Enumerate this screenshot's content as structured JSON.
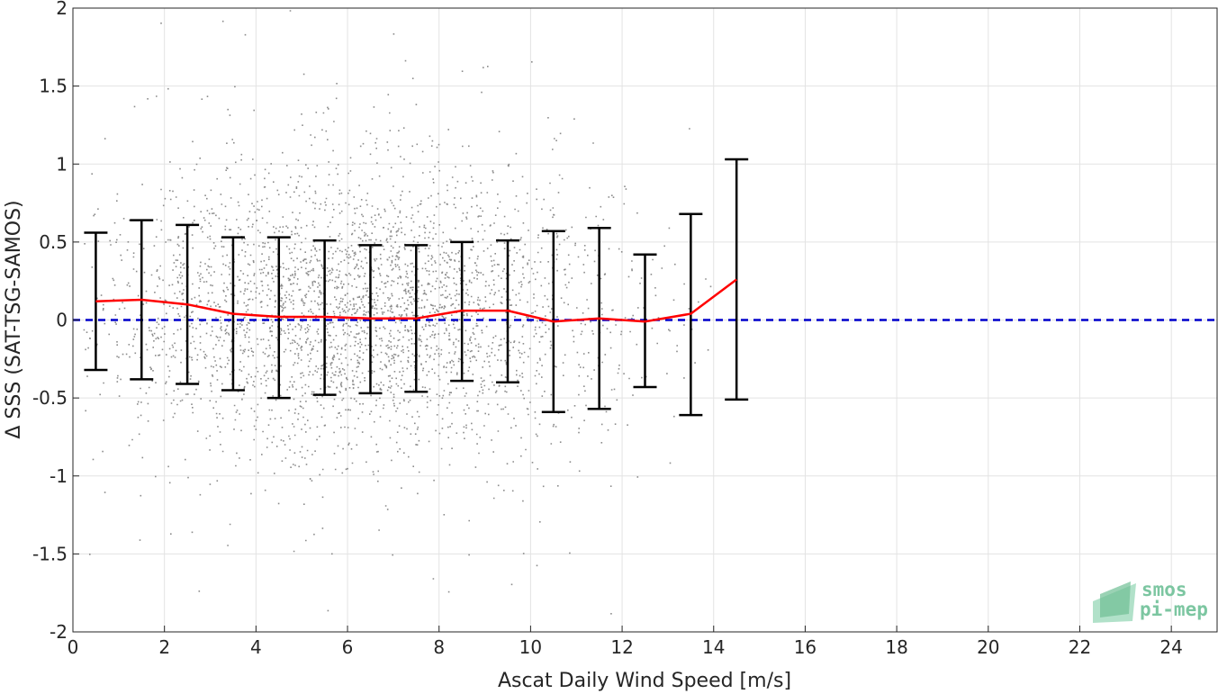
{
  "chart_data": {
    "type": "scatter",
    "title": "",
    "xlabel": "Ascat Daily Wind Speed [m/s]",
    "ylabel": "Δ SSS (SAT-TSG-SAMOS)",
    "xlim": [
      0,
      25
    ],
    "ylim": [
      -2,
      2
    ],
    "x_ticks": [
      "0",
      "2",
      "4",
      "6",
      "8",
      "10",
      "12",
      "14",
      "16",
      "18",
      "20",
      "22",
      "24"
    ],
    "y_ticks": [
      "-2",
      "-1.5",
      "-1",
      "-0.5",
      "0",
      "0.5",
      "1",
      "1.5",
      "2"
    ],
    "grid": true,
    "scatter_color": "#808080",
    "mean_line_color": "#ff0000",
    "zero_line_color": "#0000cc",
    "errorbar_color": "#000000",
    "bins": {
      "x": [
        0.5,
        1.5,
        2.5,
        3.5,
        4.5,
        5.5,
        6.5,
        7.5,
        8.5,
        9.5,
        10.5,
        11.5,
        12.5,
        13.5,
        14.5
      ],
      "mean": [
        0.12,
        0.13,
        0.1,
        0.04,
        0.02,
        0.02,
        0.01,
        0.01,
        0.06,
        0.06,
        -0.01,
        0.01,
        -0.01,
        0.04,
        0.26
      ],
      "upper": [
        0.56,
        0.64,
        0.61,
        0.53,
        0.53,
        0.51,
        0.48,
        0.48,
        0.5,
        0.51,
        0.57,
        0.59,
        0.42,
        0.68,
        1.03
      ],
      "lower": [
        -0.32,
        -0.38,
        -0.41,
        -0.45,
        -0.5,
        -0.48,
        -0.47,
        -0.46,
        -0.39,
        -0.4,
        -0.59,
        -0.57,
        -0.43,
        -0.61,
        -0.51
      ]
    },
    "zero_line": 0,
    "logo": [
      "smos",
      "pi-mep"
    ]
  }
}
